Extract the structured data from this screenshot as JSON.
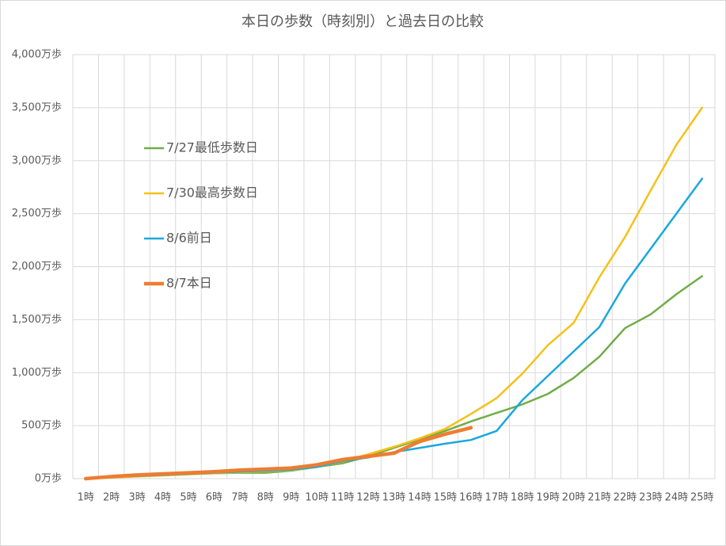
{
  "chart_data": {
    "type": "line",
    "title": "本日の歩数（時刻別）と過去日の比較",
    "categories": [
      "1時",
      "2時",
      "3時",
      "4時",
      "5時",
      "6時",
      "7時",
      "8時",
      "9時",
      "10時",
      "11時",
      "12時",
      "13時",
      "14時",
      "15時",
      "16時",
      "17時",
      "18時",
      "19時",
      "20時",
      "21時",
      "22時",
      "23時",
      "24時",
      "25時"
    ],
    "series": [
      {
        "name": "7/27最低歩数日",
        "color": "#70ad47",
        "values": [
          0,
          15,
          25,
          35,
          45,
          50,
          55,
          55,
          75,
          110,
          145,
          210,
          290,
          370,
          450,
          540,
          620,
          700,
          800,
          950,
          1150,
          1420,
          1550,
          1740,
          1910
        ]
      },
      {
        "name": "7/30最高歩数日",
        "color": "#f5c118",
        "values": [
          0,
          10,
          20,
          30,
          40,
          50,
          60,
          70,
          80,
          110,
          160,
          230,
          300,
          380,
          470,
          610,
          760,
          990,
          1260,
          1470,
          1900,
          2280,
          2720,
          3150,
          3500
        ]
      },
      {
        "name": "8/6前日",
        "color": "#1aa7e0",
        "values": [
          0,
          15,
          25,
          35,
          45,
          55,
          65,
          75,
          85,
          110,
          165,
          200,
          250,
          290,
          330,
          365,
          450,
          740,
          970,
          1200,
          1430,
          1840,
          2170,
          2500,
          2830
        ]
      },
      {
        "name": "8/7本日",
        "color": "#ed7d31",
        "values": [
          0,
          20,
          35,
          45,
          55,
          65,
          80,
          90,
          100,
          130,
          180,
          210,
          240,
          350,
          420,
          480,
          null,
          null,
          null,
          null,
          null,
          null,
          null,
          null,
          null
        ]
      }
    ],
    "ylim": [
      0,
      4000
    ],
    "yticks": [
      {
        "value": 0,
        "label": "0万歩"
      },
      {
        "value": 500,
        "label": "500万歩"
      },
      {
        "value": 1000,
        "label": "1,000万歩"
      },
      {
        "value": 1500,
        "label": "1,500万歩"
      },
      {
        "value": 2000,
        "label": "2,000万歩"
      },
      {
        "value": 2500,
        "label": "2,500万歩"
      },
      {
        "value": 3000,
        "label": "3,000万歩"
      },
      {
        "value": 3500,
        "label": "3,500万歩"
      },
      {
        "value": 4000,
        "label": "4,000万歩"
      }
    ],
    "grid": true
  }
}
